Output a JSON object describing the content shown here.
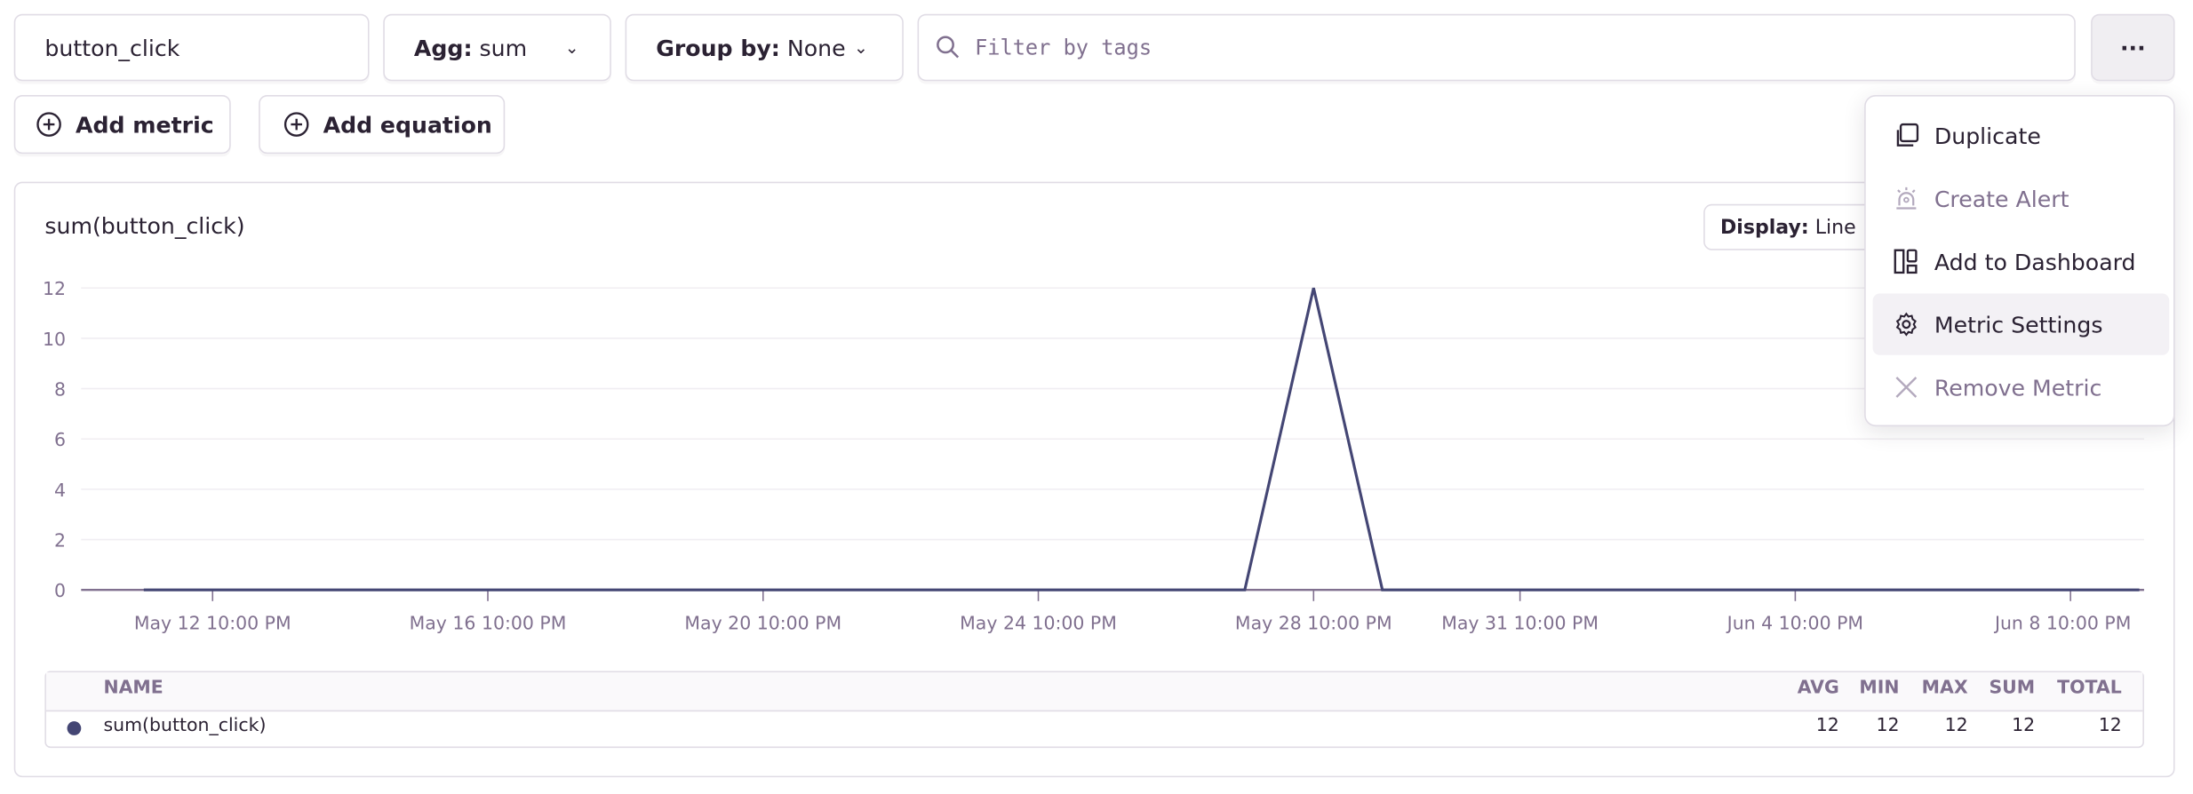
{
  "toolbar": {
    "metric_value": "button_click",
    "agg_label": "Agg:",
    "agg_value": "sum",
    "group_label": "Group by:",
    "group_value": "None",
    "filter_placeholder": "Filter by tags",
    "more_label": "···",
    "add_metric": "Add metric",
    "add_equation": "Add equation"
  },
  "menu": {
    "items": [
      {
        "label": "Duplicate",
        "icon": "copy-icon",
        "disabled": false
      },
      {
        "label": "Create Alert",
        "icon": "siren-icon",
        "disabled": true
      },
      {
        "label": "Add to Dashboard",
        "icon": "dashboard-icon",
        "disabled": false
      },
      {
        "label": "Metric Settings",
        "icon": "gear-icon",
        "disabled": false,
        "highlighted": true
      },
      {
        "label": "Remove Metric",
        "icon": "close-icon",
        "disabled": true
      }
    ]
  },
  "card": {
    "title": "sum(button_click)",
    "display_label": "Display:",
    "display_value": "Line"
  },
  "chart_data": {
    "type": "line",
    "title": "sum(button_click)",
    "ylim": [
      0,
      12
    ],
    "y_ticks": [
      "0",
      "2",
      "4",
      "6",
      "8",
      "10",
      "12"
    ],
    "x_ticks": [
      "May 12 10:00 PM",
      "May 16 10:00 PM",
      "May 20 10:00 PM",
      "May 24 10:00 PM",
      "May 28 10:00 PM",
      "May 31 10:00 PM",
      "Jun 4 10:00 PM",
      "Jun 8 10:00 PM"
    ],
    "grid": "horizontal",
    "line_color": "#444674",
    "series": [
      {
        "name": "sum(button_click)",
        "points": [
          {
            "x": "May 11 10:00 PM",
            "y": 0
          },
          {
            "x": "May 27 10:00 PM",
            "y": 0
          },
          {
            "x": "May 28 10:00 PM",
            "y": 12
          },
          {
            "x": "May 29 10:00 PM",
            "y": 0
          },
          {
            "x": "Jun 9 10:00 PM",
            "y": 0
          }
        ]
      }
    ]
  },
  "summary_table": {
    "headers": {
      "name": "NAME",
      "avg": "AVG",
      "min": "MIN",
      "max": "MAX",
      "sum": "SUM",
      "total": "TOTAL"
    },
    "rows": [
      {
        "name": "sum(button_click)",
        "color": "#444674",
        "avg": "12",
        "min": "12",
        "max": "12",
        "sum": "12",
        "total": "12"
      }
    ]
  }
}
